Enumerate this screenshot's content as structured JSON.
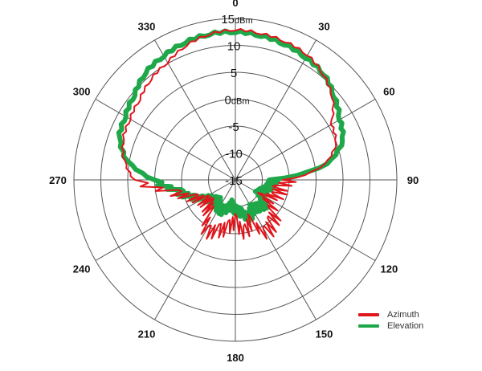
{
  "chart_data": {
    "type": "polar-line",
    "title": "",
    "radial_unit": "dBm",
    "radial_range": [
      -15,
      15
    ],
    "radial_ticks": [
      "15dBm",
      "10",
      "5",
      "0dBm",
      "-5",
      "-10",
      "-15"
    ],
    "radial_tick_values": [
      15,
      10,
      5,
      0,
      -5,
      -10,
      -15
    ],
    "angular_ticks": [
      "0",
      "30",
      "60",
      "90",
      "120",
      "150",
      "180",
      "210",
      "240",
      "270",
      "300",
      "330"
    ],
    "angular_tick_values": [
      0,
      30,
      60,
      90,
      120,
      150,
      180,
      210,
      240,
      270,
      300,
      330
    ],
    "angles_deg": [
      0,
      10,
      20,
      30,
      40,
      50,
      60,
      70,
      80,
      90,
      100,
      110,
      120,
      130,
      140,
      150,
      160,
      170,
      180,
      190,
      200,
      210,
      220,
      230,
      240,
      250,
      260,
      270,
      280,
      290,
      300,
      310,
      320,
      330,
      340,
      350
    ],
    "series": [
      {
        "name": "Azimuth",
        "color": "#e0161c",
        "values": [
          12.9,
          12.6,
          12.3,
          11.8,
          10.5,
          8.6,
          5.6,
          5.0,
          2.0,
          -5.0,
          -6.8,
          -6.5,
          -9.0,
          -5.5,
          -4.5,
          -3.5,
          -7.0,
          -5.0,
          -7.5,
          -6.0,
          -5.0,
          -4.0,
          -7.5,
          -8.5,
          -8.0,
          -6.0,
          -3.0,
          3.8,
          6.0,
          7.2,
          7.6,
          8.2,
          9.4,
          10.2,
          11.6,
          12.5
        ]
      },
      {
        "name": "Elevation",
        "color": "#1fa84a",
        "values": [
          12.5,
          12.2,
          11.8,
          11.2,
          10.6,
          9.0,
          7.4,
          6.3,
          2.5,
          -8.0,
          -8.5,
          -9.5,
          -10.0,
          -8.0,
          -8.5,
          -9.0,
          -7.5,
          -9.0,
          -9.5,
          -10.5,
          -9.0,
          -9.0,
          -10.0,
          -9.5,
          -8.5,
          -6.0,
          -4.0,
          0.2,
          5.5,
          8.0,
          8.6,
          9.5,
          11.0,
          11.6,
          12.2,
          12.5
        ]
      }
    ],
    "legend_position": "bottom-right",
    "grid": true
  },
  "legend": {
    "items": [
      {
        "label": "Azimuth",
        "color": "#e0161c"
      },
      {
        "label": "Elevation",
        "color": "#1fa84a"
      }
    ]
  }
}
